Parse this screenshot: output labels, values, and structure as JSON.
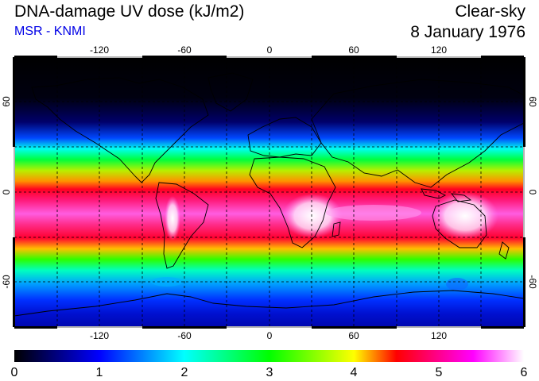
{
  "header": {
    "title": "DNA-damage UV dose (kJ/m2)",
    "subtitle": "MSR - KNMI",
    "mode": "Clear-sky",
    "date": "8 January 1976"
  },
  "map": {
    "lon_range": [
      -180,
      180
    ],
    "lat_range": [
      -90,
      90
    ],
    "lon_ticks": [
      "-120",
      "-60",
      "0",
      "60",
      "120"
    ],
    "lat_ticks": [
      "60",
      "0",
      "-60"
    ],
    "grid": "dashed, every 30 degrees"
  },
  "colorbar": {
    "min": 0,
    "max": 6,
    "labels": [
      "0",
      "1",
      "2",
      "3",
      "4",
      "5",
      "6"
    ],
    "colors": [
      "#000000",
      "#0000ff",
      "#00ffff",
      "#00ff00",
      "#ffff00",
      "#ff0000",
      "#ff00ff",
      "#ffffff"
    ]
  }
}
